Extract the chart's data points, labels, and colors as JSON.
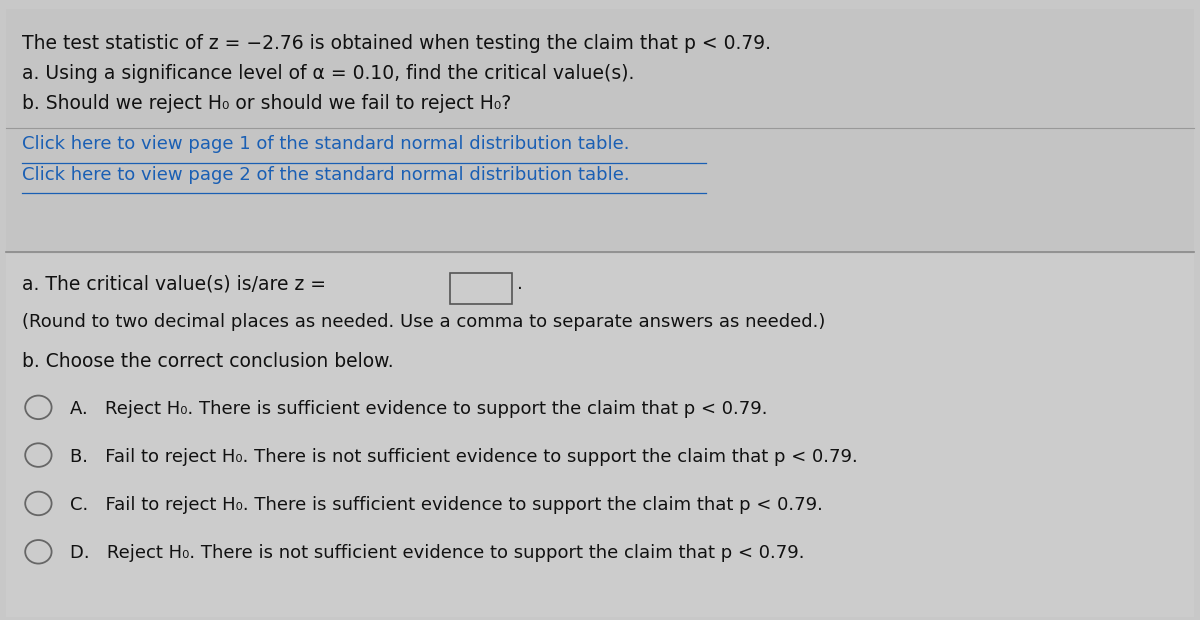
{
  "bg_color": "#c8c8c8",
  "top_section_bg": "#c4c4c4",
  "bottom_section_bg": "#cccccc",
  "text_color_black": "#111111",
  "text_color_link": "#1a5fb4",
  "line1": "The test statistic of z = −2.76 is obtained when testing the claim that p < 0.79.",
  "line2": "a. Using a significance level of α = 0.10, find the critical value(s).",
  "line3": "b. Should we reject H₀ or should we fail to reject H₀?",
  "link1": "Click here to view page 1 of the standard normal distribution table.",
  "link2": "Click here to view page 2 of the standard normal distribution table.",
  "part_a_label": "a. The critical value(s) is/are z =",
  "part_a_note": "(Round to two decimal places as needed. Use a comma to separate answers as needed.)",
  "part_b_label": "b. Choose the correct conclusion below.",
  "option_A": "A.   Reject H₀. There is sufficient evidence to support the claim that p < 0.79.",
  "option_B": "B.   Fail to reject H₀. There is not sufficient evidence to support the claim that p < 0.79.",
  "option_C": "C.   Fail to reject H₀. There is sufficient evidence to support the claim that p < 0.79.",
  "option_D": "D.   Reject H₀. There is not sufficient evidence to support the claim that p < 0.79.",
  "font_size_main": 13.5,
  "font_size_link": 13.0,
  "font_size_option": 13.0
}
